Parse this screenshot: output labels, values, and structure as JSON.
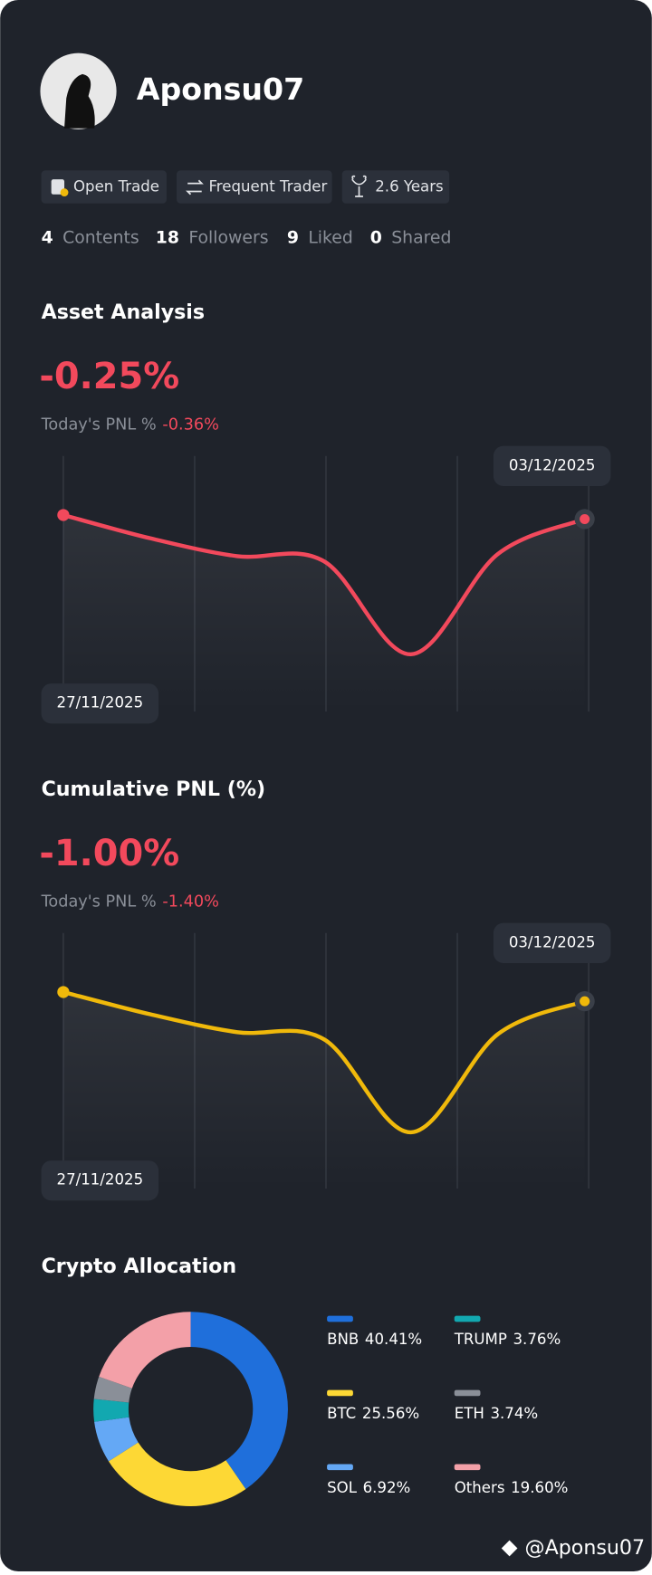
{
  "profile": {
    "username": "Aponsu07",
    "badges": [
      "Open Trade",
      "Frequent Trader",
      "2.6 Years"
    ],
    "stats": [
      {
        "value": "4",
        "label": "Contents"
      },
      {
        "value": "18",
        "label": "Followers"
      },
      {
        "value": "9",
        "label": "Liked"
      },
      {
        "value": "0",
        "label": "Shared"
      }
    ]
  },
  "chart_data": [
    {
      "type": "line",
      "title": "Asset Analysis",
      "headline": "-0.25%",
      "today_label": "Today's PNL %",
      "today_value": "-0.36%",
      "x": [
        "27/11/2025",
        null,
        null,
        null,
        null,
        null,
        "03/12/2025"
      ],
      "values": [
        76.9,
        67.8,
        60.8,
        58.8,
        22.4,
        61.6,
        75.3
      ],
      "color": "#f2495c",
      "ylim": [
        0,
        100
      ]
    },
    {
      "type": "line",
      "title": "Cumulative PNL (%)",
      "headline": "-1.00%",
      "today_label": "Today's PNL %",
      "today_value": "-1.40%",
      "x": [
        "27/11/2025",
        null,
        null,
        null,
        null,
        null,
        "03/12/2025"
      ],
      "values": [
        76.9,
        68.2,
        61.2,
        58.4,
        22.0,
        60.4,
        73.3
      ],
      "color": "#f0b90b",
      "ylim": [
        0,
        100
      ]
    },
    {
      "type": "donut",
      "title": "Crypto Allocation",
      "categories": [
        "BNB",
        "BTC",
        "SOL",
        "TRUMP",
        "ETH",
        "Others"
      ],
      "values": [
        40.41,
        25.56,
        6.92,
        3.76,
        3.74,
        19.6
      ],
      "value_labels": [
        "40.41%",
        "25.56%",
        "6.92%",
        "3.76%",
        "3.74%",
        "19.60%"
      ],
      "colors": [
        "#1f6fdb",
        "#fdd835",
        "#64a8f5",
        "#12a8b0",
        "#8a8f98",
        "#f3a0a8"
      ]
    }
  ],
  "watermark": "@Aponsu07"
}
